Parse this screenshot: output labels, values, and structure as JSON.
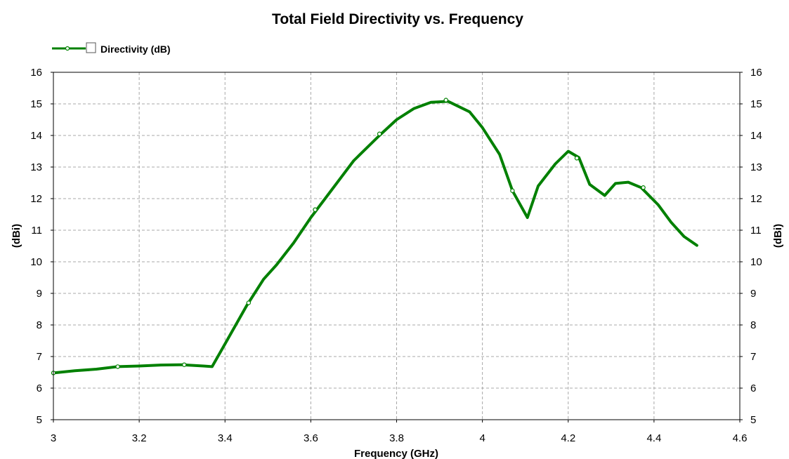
{
  "chart_data": {
    "type": "line",
    "title": "Total Field Directivity vs. Frequency",
    "xlabel": "Frequency (GHz)",
    "ylabel": "(dBi)",
    "ylabel_right": "(dBi)",
    "xlim": [
      3,
      4.6
    ],
    "ylim": [
      5,
      16
    ],
    "x_ticks": [
      "3",
      "3.2",
      "3.4",
      "3.6",
      "3.8",
      "4",
      "4.2",
      "4.4",
      "4.6"
    ],
    "y_ticks": [
      "5",
      "6",
      "7",
      "8",
      "9",
      "10",
      "11",
      "12",
      "13",
      "14",
      "15",
      "16"
    ],
    "grid": true,
    "legend_position": "top-left",
    "series": [
      {
        "name": "Directivity (dB)",
        "color": "#008000",
        "x": [
          3.0,
          3.05,
          3.1,
          3.15,
          3.2,
          3.25,
          3.3,
          3.35,
          3.37,
          3.4,
          3.45,
          3.49,
          3.52,
          3.56,
          3.6,
          3.65,
          3.7,
          3.76,
          3.8,
          3.84,
          3.88,
          3.92,
          3.97,
          4.0,
          4.04,
          4.07,
          4.105,
          4.13,
          4.17,
          4.2,
          4.225,
          4.25,
          4.285,
          4.31,
          4.34,
          4.37,
          4.41,
          4.44,
          4.47,
          4.5
        ],
        "y": [
          6.48,
          6.55,
          6.6,
          6.68,
          6.7,
          6.73,
          6.74,
          6.7,
          6.68,
          7.4,
          8.6,
          9.45,
          9.9,
          10.6,
          11.4,
          12.3,
          13.2,
          14.0,
          14.5,
          14.85,
          15.05,
          15.08,
          14.75,
          14.25,
          13.4,
          12.25,
          11.4,
          12.4,
          13.1,
          13.5,
          13.3,
          12.45,
          12.1,
          12.48,
          12.52,
          12.35,
          11.8,
          11.25,
          10.8,
          10.52
        ]
      }
    ],
    "markers": {
      "x": [
        3.0,
        3.15,
        3.305,
        3.455,
        3.61,
        3.76,
        3.915,
        4.07,
        4.22,
        4.375
      ],
      "y": [
        6.48,
        6.68,
        6.74,
        8.7,
        11.65,
        14.05,
        15.12,
        12.25,
        13.28,
        12.35
      ]
    }
  }
}
